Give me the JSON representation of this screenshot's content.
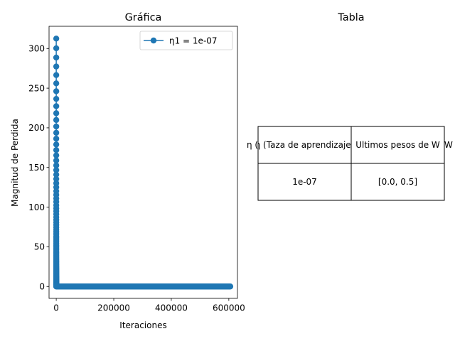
{
  "chart_data": [
    {
      "type": "line",
      "title": "Gráfica",
      "xlabel": "Iteraciones",
      "ylabel": "Magnitud de Perdida",
      "xlim": [
        -25000,
        630000
      ],
      "ylim": [
        -15,
        328
      ],
      "xticks": [
        0,
        200000,
        400000,
        600000
      ],
      "xtick_labels": [
        "0",
        "200000",
        "400000",
        "600000"
      ],
      "yticks": [
        0,
        50,
        100,
        150,
        200,
        250,
        300
      ],
      "ytick_labels": [
        "0",
        "50",
        "100",
        "150",
        "200",
        "250",
        "300"
      ],
      "grid": false,
      "legend": "top-right",
      "series": [
        {
          "name": "η1 = 1e-07",
          "color": "#1f77b4",
          "marker": "circle",
          "x_start": 0,
          "x_end": 605000,
          "step": 1,
          "head_y": [
            312.5,
            300.3,
            288.6,
            277.3,
            266.5,
            256.1,
            246.1,
            236.5,
            227.3,
            218.4,
            209.9,
            201.7,
            193.8,
            186.3,
            179.0,
            172.0,
            165.3,
            158.9,
            152.7,
            146.7,
            141.0,
            135.5,
            130.2,
            125.1,
            120.2,
            115.5,
            111.0,
            106.7,
            102.5,
            98.5,
            94.7,
            91.0,
            87.4,
            84.0,
            80.7,
            77.6,
            74.5,
            71.6,
            68.8,
            66.1,
            63.5,
            61.1,
            58.7,
            56.4,
            54.2,
            52.0,
            50.0,
            48.1,
            46.2,
            44.4,
            42.6,
            41.0,
            39.4,
            37.8,
            36.3,
            34.9,
            33.6,
            32.3,
            31.0,
            29.8,
            28.6,
            27.5,
            26.4,
            25.4,
            24.4,
            23.5,
            22.5,
            21.7,
            20.8,
            20.0,
            19.2,
            18.5,
            17.8,
            17.1,
            16.4,
            15.8,
            15.1,
            14.5,
            14.0,
            13.4,
            12.9,
            12.4,
            11.9,
            11.5,
            11.0,
            10.6,
            10.2,
            9.8,
            9.4,
            9.0,
            8.7,
            8.3,
            8.0,
            7.7,
            7.4,
            7.1,
            6.8,
            6.6,
            6.3,
            6.1,
            5.8,
            5.6,
            5.4,
            5.2,
            5.0,
            4.8,
            4.6,
            4.4,
            4.2,
            4.1,
            3.9,
            3.8,
            3.6,
            3.5,
            3.3,
            3.2,
            3.1,
            3.0,
            2.8,
            2.7,
            2.6,
            2.5,
            2.4,
            2.3,
            2.2,
            2.1,
            2.0,
            1.9,
            1.8,
            1.7,
            1.5,
            1.3,
            1.1,
            0.9,
            0.7,
            0.5,
            0.3,
            0.1
          ],
          "tail_y": 0
        }
      ]
    },
    {
      "type": "table",
      "title": "Tabla",
      "columns": [
        "η (Taza de aprendizaje)",
        "Ultimos pesos de W"
      ],
      "rows": [
        [
          "1e-07",
          "[0.0, 0.5]"
        ]
      ]
    }
  ]
}
